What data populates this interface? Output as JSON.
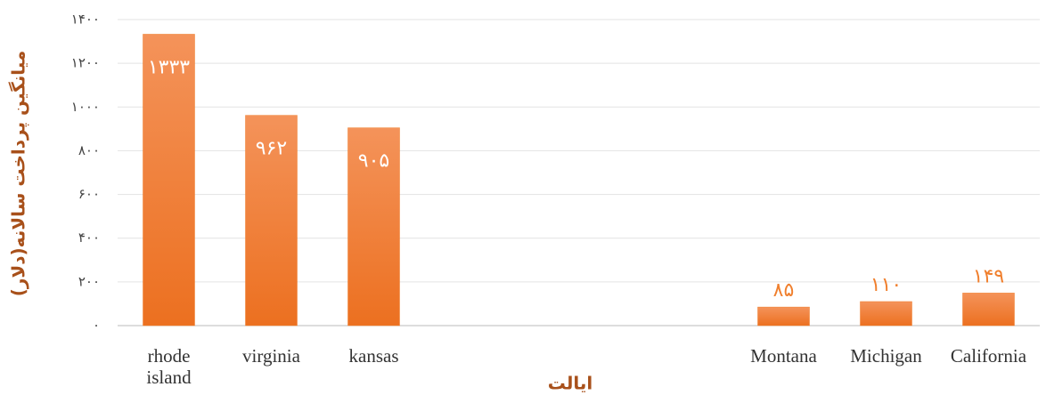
{
  "chart_data": {
    "type": "bar",
    "x_label": "ایالت",
    "y_label": "میانگین پرداخت سالانه(دلار)",
    "categories": [
      "rhode island",
      "virginia",
      "kansas",
      null,
      null,
      null,
      "Montana",
      "Michigan",
      "California"
    ],
    "values": [
      1333,
      962,
      905,
      null,
      null,
      null,
      85,
      110,
      149
    ],
    "value_labels": [
      "۱۳۳۳",
      "۹۶۲",
      "۹۰۵",
      null,
      null,
      null,
      "۸۵",
      "۱۱۰",
      "۱۴۹"
    ],
    "color": "#f07f2d",
    "ylim": [
      0,
      1400
    ],
    "yticks": [
      {
        "value": 0,
        "label": "۰"
      },
      {
        "value": 200,
        "label": "۲۰۰"
      },
      {
        "value": 400,
        "label": "۴۰۰"
      },
      {
        "value": 600,
        "label": "۶۰۰"
      },
      {
        "value": 800,
        "label": "۸۰۰"
      },
      {
        "value": 1000,
        "label": "۱۰۰۰"
      },
      {
        "value": 1200,
        "label": "۱۲۰۰"
      },
      {
        "value": 1400,
        "label": "۱۴۰۰"
      }
    ],
    "grid": true
  }
}
